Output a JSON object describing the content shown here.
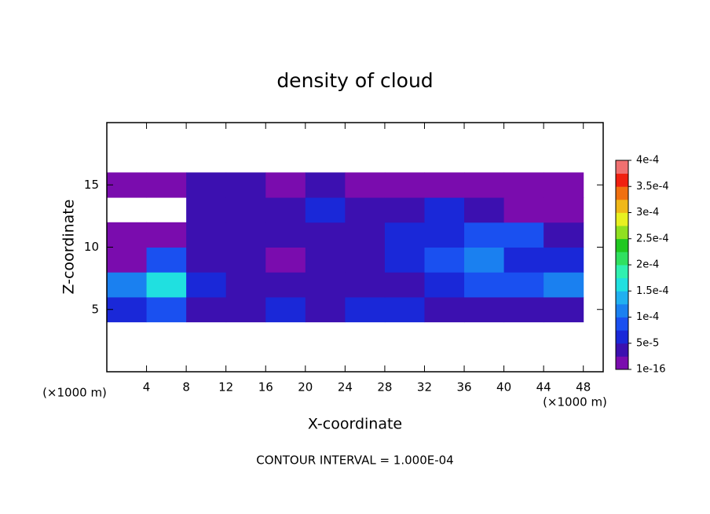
{
  "chart_data": {
    "type": "contour",
    "title": "density of cloud",
    "x_label": "X-coordinate",
    "y_label": "Z-coordinate",
    "x_unit": "(×1000 m)",
    "y_unit": "(×1000 m)",
    "note": "CONTOUR INTERVAL = 1.000E-04",
    "xlim": [
      0,
      50
    ],
    "xticks": [
      4,
      8,
      12,
      16,
      20,
      24,
      28,
      32,
      36,
      40,
      44,
      48
    ],
    "ylim": [
      0,
      20
    ],
    "yticks": [
      5,
      10,
      15
    ],
    "x": [
      2,
      6,
      10,
      14,
      18,
      22,
      26,
      30,
      34,
      38,
      42,
      46
    ],
    "z": [
      5,
      7,
      9,
      11,
      13,
      15
    ],
    "values": [
      [
        7e-05,
        8e-05,
        5e-05,
        3e-05,
        6e-05,
        4e-05,
        6e-05,
        6e-05,
        5e-05,
        4e-05,
        3e-05,
        5e-05
      ],
      [
        0.00012,
        0.00016,
        6e-05,
        4e-05,
        3e-05,
        5e-05,
        4e-05,
        5e-05,
        7e-05,
        0.0001,
        0.0001,
        0.00011
      ],
      [
        1e-05,
        9e-05,
        4e-05,
        3e-05,
        2e-05,
        3e-05,
        4e-05,
        6e-05,
        8e-05,
        0.00012,
        7e-05,
        6e-05
      ],
      [
        1e-05,
        2e-05,
        3e-05,
        4e-05,
        3e-05,
        4e-05,
        5e-05,
        6e-05,
        7e-05,
        8e-05,
        8e-05,
        4e-05
      ],
      [
        null,
        null,
        4e-05,
        5e-05,
        5e-05,
        6e-05,
        4e-05,
        3e-05,
        6e-05,
        3e-05,
        2e-05,
        1e-05
      ],
      [
        1e-05,
        2e-05,
        3e-05,
        3e-05,
        2e-05,
        3e-05,
        2e-05,
        2e-05,
        2e-05,
        1e-05,
        1e-05,
        1e-05
      ]
    ],
    "clim": [
      1e-16,
      0.0004
    ],
    "cticks": [
      1e-16,
      {
        "value": 5e-05,
        "label": "5e-5"
      },
      {
        "value": 0.0001,
        "label": "1e-4"
      },
      {
        "value": 0.00015,
        "label": "1.5e-4"
      },
      {
        "value": 0.0002,
        "label": "2e-4"
      },
      {
        "value": 0.00025,
        "label": "2.5e-4"
      },
      {
        "value": 0.0003,
        "label": "3e-4"
      },
      {
        "value": 0.00035,
        "label": "3.5e-4"
      },
      {
        "value": 0.0004,
        "label": "4e-4"
      }
    ],
    "colors": [
      "#7a0cae",
      "#3c10b0",
      "#1a28d8",
      "#1a50f0",
      "#1a80f0",
      "#20b0f0",
      "#20e0e0",
      "#30f0b0",
      "#30e060",
      "#20c820",
      "#90e020",
      "#e8f020",
      "#f0b818",
      "#f07010",
      "#f02010",
      "#f07070"
    ]
  }
}
